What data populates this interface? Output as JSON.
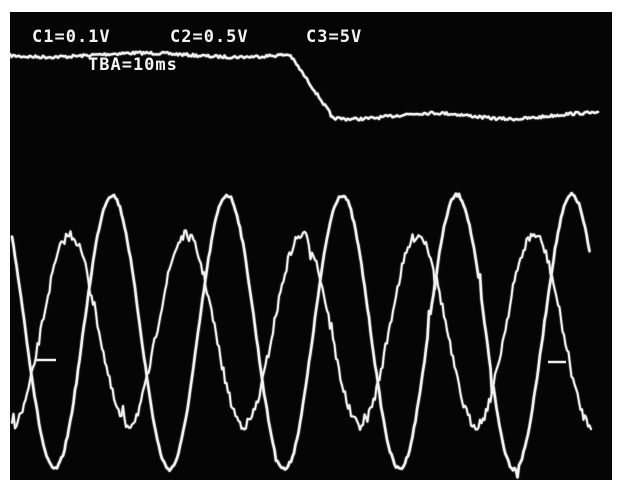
{
  "readouts": {
    "channels": [
      "C1=0.1V",
      "C2=0.5V",
      "C3=5V"
    ],
    "timebase": "TBA=10ms"
  }
}
